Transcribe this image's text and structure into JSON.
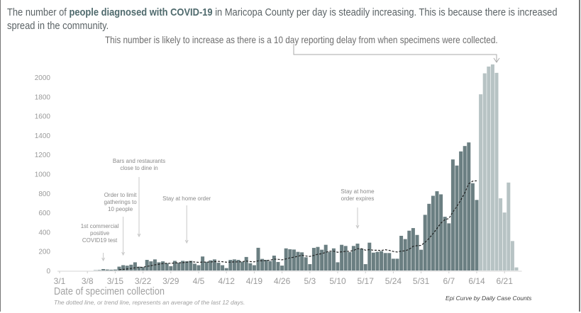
{
  "title": {
    "pre": "The number of ",
    "bold": "people diagnosed with COVID-19",
    "post": " in Maricopa County per day is steadily increasing. This is because there is increased spread in the community."
  },
  "subtitle": "This number is likely to increase as there is a 10 day reporting delay from when specimens were collected.",
  "colors": {
    "bar": "#6b7f82",
    "bar_delayed": "#b7c3c4",
    "trend": "#222222",
    "text": "#5a6265"
  },
  "chart_data": {
    "type": "bar",
    "start_date": "3/1",
    "xlabel": "Date of specimen collection",
    "note": "The dotted line, or trend line, represents an average of the last 12 days.",
    "caption": "Epi Curve by Daily Case Counts",
    "x_ticks": [
      "3/1",
      "3/8",
      "3/15",
      "3/22",
      "3/29",
      "4/5",
      "4/12",
      "4/19",
      "4/26",
      "5/3",
      "5/10",
      "5/17",
      "5/24",
      "5/31",
      "6/7",
      "6/14",
      "6/21"
    ],
    "y_ticks": [
      0,
      200,
      400,
      600,
      800,
      1000,
      1200,
      1400,
      1600,
      1800,
      2000
    ],
    "ylim": [
      0,
      2100
    ],
    "delayed_days": 10,
    "trend_window": 12,
    "values": [
      0,
      0,
      0,
      0,
      0,
      0,
      0,
      0,
      0,
      3,
      5,
      15,
      10,
      8,
      10,
      40,
      55,
      50,
      60,
      85,
      40,
      35,
      110,
      95,
      115,
      85,
      95,
      75,
      45,
      100,
      80,
      100,
      95,
      100,
      70,
      55,
      145,
      90,
      105,
      115,
      80,
      55,
      25,
      110,
      115,
      110,
      90,
      140,
      75,
      55,
      235,
      120,
      110,
      98,
      154,
      88,
      51,
      229,
      220,
      217,
      193,
      188,
      137,
      66,
      234,
      244,
      215,
      266,
      193,
      229,
      85,
      266,
      254,
      190,
      254,
      278,
      227,
      66,
      288,
      185,
      193,
      200,
      181,
      181,
      122,
      122,
      359,
      325,
      412,
      439,
      368,
      215,
      576,
      690,
      773,
      820,
      788,
      556,
      488,
      1149,
      1086,
      1232,
      1288,
      1325,
      903,
      730,
      1823,
      2040,
      2110,
      2132,
      2045,
      747,
      600,
      910,
      305,
      32
    ],
    "annotations": [
      {
        "date": "3/12",
        "lines": [
          "1st commercial",
          "positive",
          "COVID19 test"
        ]
      },
      {
        "date": "3/17",
        "lines": [
          "Order to limit",
          "gatherings to",
          "10 people"
        ]
      },
      {
        "date": "3/21",
        "lines": [
          "Bars and restaurants",
          "close to dine in"
        ]
      },
      {
        "date": "4/2",
        "lines": [
          "Stay at home order"
        ]
      },
      {
        "date": "5/15",
        "lines": [
          "Stay at home",
          "order expires"
        ]
      }
    ]
  }
}
